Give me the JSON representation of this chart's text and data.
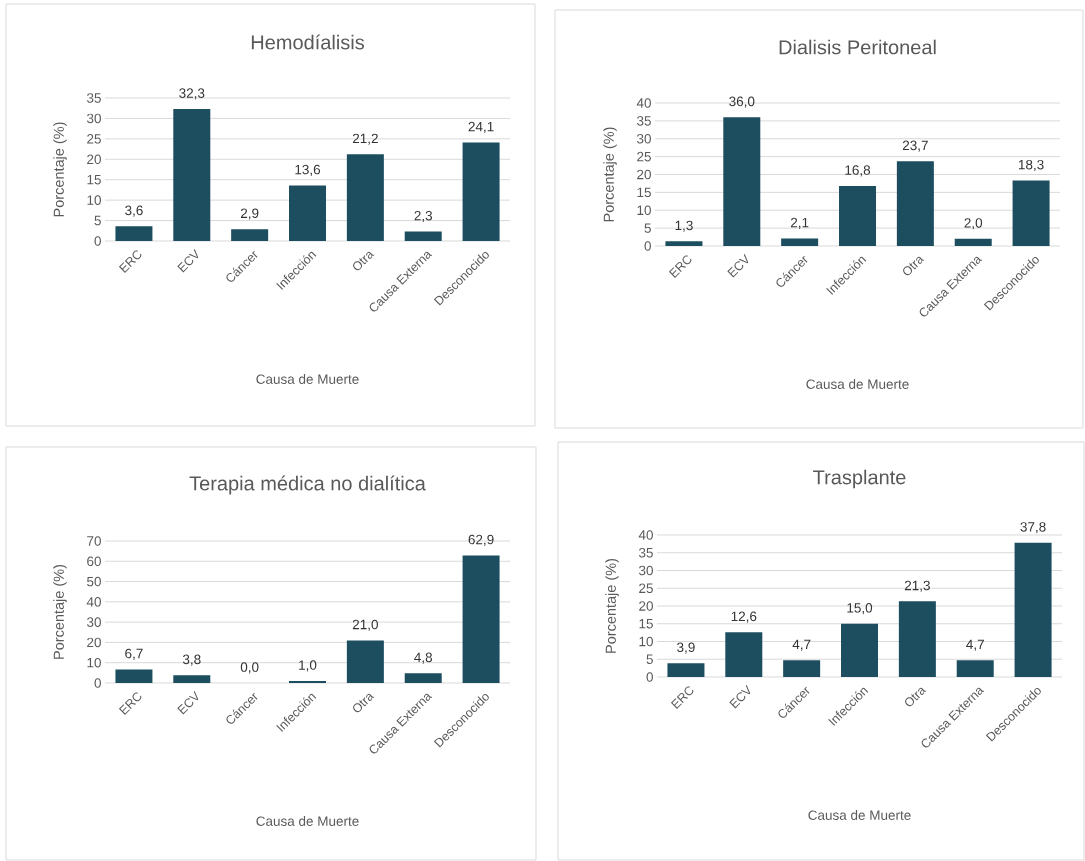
{
  "chart_data": [
    {
      "type": "bar",
      "title": "Hemodíalisis",
      "xlabel": "Causa de Muerte",
      "ylabel": "Porcentaje (%)",
      "categories": [
        "ERC",
        "ECV",
        "Cáncer",
        "Infección",
        "Otra",
        "Causa Externa",
        "Desconocido"
      ],
      "values": [
        3.6,
        32.3,
        2.9,
        13.6,
        21.2,
        2.3,
        24.1
      ],
      "value_labels": [
        "3,6",
        "32,3",
        "2,9",
        "13,6",
        "21,2",
        "2,3",
        "24,1"
      ],
      "color": "#1d4e5f",
      "ylim": [
        0,
        35
      ],
      "yticks": [
        0,
        5,
        10,
        15,
        20,
        25,
        30,
        35
      ],
      "grid": "y"
    },
    {
      "type": "bar",
      "title": "Dialisis Peritoneal",
      "xlabel": "Causa de Muerte",
      "ylabel": "Porcentaje (%)",
      "categories": [
        "ERC",
        "ECV",
        "Cáncer",
        "Infección",
        "Otra",
        "Causa Externa",
        "Desconocido"
      ],
      "values": [
        1.3,
        36.0,
        2.1,
        16.8,
        23.7,
        2.0,
        18.3
      ],
      "value_labels": [
        "1,3",
        "36,0",
        "2,1",
        "16,8",
        "23,7",
        "2,0",
        "18,3"
      ],
      "color": "#1d4e5f",
      "ylim": [
        0,
        40
      ],
      "yticks": [
        0,
        5,
        10,
        15,
        20,
        25,
        30,
        35,
        40
      ],
      "grid": "y"
    },
    {
      "type": "bar",
      "title": "Terapia médica no dialítica",
      "xlabel": "Causa de Muerte",
      "ylabel": "Porcentaje (%)",
      "categories": [
        "ERC",
        "ECV",
        "Cáncer",
        "Infección",
        "Otra",
        "Causa Externa",
        "Desconocido"
      ],
      "values": [
        6.7,
        3.8,
        0.0,
        1.0,
        21.0,
        4.8,
        62.9
      ],
      "value_labels": [
        "6,7",
        "3,8",
        "0,0",
        "1,0",
        "21,0",
        "4,8",
        "62,9"
      ],
      "color": "#1d4e5f",
      "ylim": [
        0,
        70
      ],
      "yticks": [
        0,
        10,
        20,
        30,
        40,
        50,
        60,
        70
      ],
      "grid": "y"
    },
    {
      "type": "bar",
      "title": "Trasplante",
      "xlabel": "Causa de Muerte",
      "ylabel": "Porcentaje (%)",
      "categories": [
        "ERC",
        "ECV",
        "Cáncer",
        "Infección",
        "Otra",
        "Causa Externa",
        "Desconocido"
      ],
      "values": [
        3.9,
        12.6,
        4.7,
        15.0,
        21.3,
        4.7,
        37.8
      ],
      "value_labels": [
        "3,9",
        "12,6",
        "4,7",
        "15,0",
        "21,3",
        "4,7",
        "37,8"
      ],
      "color": "#1d4e5f",
      "ylim": [
        0,
        40
      ],
      "yticks": [
        0,
        5,
        10,
        15,
        20,
        25,
        30,
        35,
        40
      ],
      "grid": "y"
    }
  ]
}
